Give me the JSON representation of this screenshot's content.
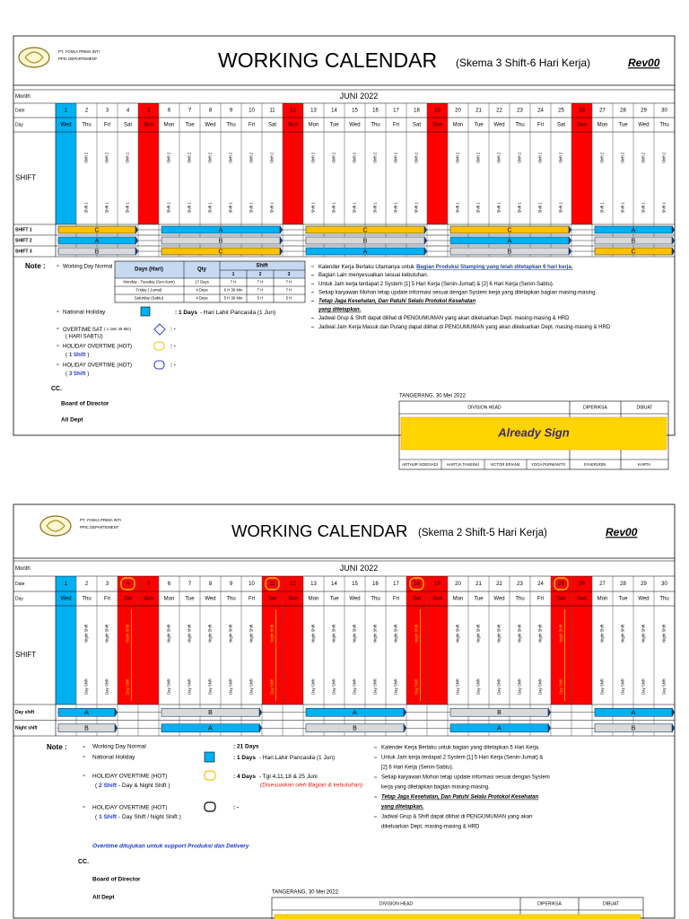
{
  "calendars": [
    {
      "company": [
        "PT. YOSKA PRIMA INTI",
        "PPIC DEPARTEMENT"
      ],
      "title": "WORKING CALENDAR",
      "subtitle": "(Skema 3 Shift-6 Hari Kerja)",
      "revision": "Rev00",
      "row_labels": {
        "month": "Month",
        "date": "Date",
        "day": "Day",
        "shift": "SHIFT"
      },
      "month": "JUNI 2022",
      "dates": [
        1,
        2,
        3,
        4,
        5,
        6,
        7,
        8,
        9,
        10,
        11,
        12,
        13,
        14,
        15,
        16,
        17,
        18,
        19,
        20,
        21,
        22,
        23,
        24,
        25,
        26,
        27,
        28,
        29,
        30
      ],
      "days": [
        "Wed",
        "Thu",
        "Fri",
        "Sat",
        "Sun",
        "Mon",
        "Tue",
        "Wed",
        "Thu",
        "Fri",
        "Sat",
        "Sun",
        "Mon",
        "Tue",
        "Wed",
        "Thu",
        "Fri",
        "Sat",
        "Sun",
        "Mon",
        "Tue",
        "Wed",
        "Thu",
        "Fri",
        "Sat",
        "Sun",
        "Mon",
        "Tue",
        "Wed",
        "Thu"
      ],
      "highlights": [
        {
          "color": "#00b0f0",
          "dates": [
            1
          ]
        },
        {
          "color": "#ff0000",
          "dates": [
            5,
            12,
            19,
            26
          ]
        }
      ],
      "circled_dates": [],
      "circle_color": "#ffc000",
      "shift_labels": [
        "Shift 1",
        "Shift 2"
      ],
      "shift_rows": [
        {
          "name": "SHIFT 1",
          "groups": [
            {
              "label": "C",
              "from": 1,
              "to": 4,
              "color": "#ffc000"
            },
            {
              "label": "A",
              "from": 6,
              "to": 11,
              "color": "#00b0f0"
            },
            {
              "label": "C",
              "from": 13,
              "to": 18,
              "color": "#ffc000"
            },
            {
              "label": "C",
              "from": 20,
              "to": 25,
              "color": "#ffc000"
            },
            {
              "label": "A",
              "from": 27,
              "to": 30,
              "color": "#00b0f0"
            }
          ]
        },
        {
          "name": "SHIFT 2",
          "groups": [
            {
              "label": "A",
              "from": 1,
              "to": 4,
              "color": "#00b0f0"
            },
            {
              "label": "B",
              "from": 6,
              "to": 11,
              "color": "#d9d9d9"
            },
            {
              "label": "B",
              "from": 13,
              "to": 18,
              "color": "#d9d9d9"
            },
            {
              "label": "A",
              "from": 20,
              "to": 25,
              "color": "#00b0f0"
            },
            {
              "label": "B",
              "from": 27,
              "to": 30,
              "color": "#d9d9d9"
            }
          ]
        },
        {
          "name": "SHIFT 3",
          "groups": [
            {
              "label": "B",
              "from": 1,
              "to": 4,
              "color": "#d9d9d9"
            },
            {
              "label": "C",
              "from": 6,
              "to": 11,
              "color": "#ffc000"
            },
            {
              "label": "A",
              "from": 13,
              "to": 18,
              "color": "#00b0f0"
            },
            {
              "label": "B",
              "from": 20,
              "to": 25,
              "color": "#d9d9d9"
            },
            {
              "label": "C",
              "from": 27,
              "to": 30,
              "color": "#ffc000"
            }
          ]
        }
      ],
      "notes": {
        "heading": "Note :",
        "working_day": "Working Day Normal",
        "table": {
          "headers": [
            "Days (Hari)",
            "Qty",
            "Shift"
          ],
          "shift_columns": [
            "1",
            "2",
            "3"
          ],
          "rows": [
            [
              "Monday - Tuesday (Sen-Kam)",
              "17 Days",
              "7 H",
              "7 H",
              "7 H"
            ],
            [
              "Friday ( Jumat)",
              "4 Days",
              "6 H 30 Min",
              "7 H",
              "7 H"
            ],
            [
              "Saturday (Sabtu)",
              "4 Days",
              "5 H 30 Min",
              "5 H",
              "5 H"
            ]
          ]
        },
        "national_holiday": {
          "label": "National Holiday",
          "value": ": 1 Days",
          "detail": "- Hari Lahir Pancasila (1 Jun)"
        },
        "overtime_sat": {
          "label": "OVERTIME SAT",
          "hours": "( 1 Jam 45 Min)",
          "detail": "( HARI SABTU)",
          "value": ": -"
        },
        "hot_one": {
          "label": "HOLIDAY OVERTIME (HOT)",
          "detail": [
            "(",
            "1 Shift",
            ")"
          ],
          "value": ": -"
        },
        "hot_three": {
          "label": "HOLIDAY OVERTIME (HOT)",
          "detail": [
            "(",
            "3 Shift",
            ")"
          ],
          "value": ": -"
        },
        "right": [
          [
            "Kalender Kerja Berlaku Utamanya untuk",
            "Bagian Produksi Stamping yang telah ditetapkan 6 hari kerja."
          ],
          [
            "Bagian Lain menyesuaikan sesuai kebutuhan."
          ],
          [
            "Untuk Jam kerja terdapat 2 System [1] 5 Hari Kerja (Senin-Jumat) & [2] 6 Hari Kerja (Senin-Sabtu)."
          ],
          [
            "Setiap karyawan Mohon tetap update informasi sesuai dengan System kerja yang ditetapkan bagian masing-masing."
          ],
          [
            "Tetap Jaga Kesehatan, Dan Patuhi Selalu Protokol Kesehatan",
            "yang ditetapkan."
          ],
          [
            "Jadwal Grup & Shift dapat dilihat di PENGUMUMAN yang akan dikeluarkan Dept. masing-masing & HRD"
          ],
          [
            "Jadwal Jam Kerja Masuk dan Pulang dapat dilihat di PENGUMUMAN yang akan dikeluarkan Dept. masing-masing & HRD"
          ]
        ]
      },
      "cc": {
        "label": "CC.",
        "recipients": [
          "Board of Director",
          "All Dept"
        ]
      },
      "signature": {
        "place_date": "TANGERANG, 30 Mei 2022",
        "headers": [
          "DIVISION HEAD",
          "DIPERIKSA",
          "DIBUAT"
        ],
        "status": "Already Sign",
        "names": [
          "ARTHUR SOEGIADI",
          "HARTJA TANSINU",
          "VICTOR ERIANS",
          "YOGA PURWANTO",
          "SYAERUDIN",
          "KARTA"
        ]
      }
    },
    {
      "company": [
        "PT. YOSKA PRIMA INTI",
        "PPIC DEPARTEMENT"
      ],
      "title": "WORKING CALENDAR",
      "subtitle": "(Skema 2 Shift-5 Hari Kerja)",
      "revision": "Rev00",
      "row_labels": {
        "month": "Month",
        "date": "Date",
        "day": "Day",
        "shift": "SHIFT"
      },
      "month": "JUNI 2022",
      "dates": [
        1,
        2,
        3,
        4,
        5,
        6,
        7,
        8,
        9,
        10,
        11,
        12,
        13,
        14,
        15,
        16,
        17,
        18,
        19,
        20,
        21,
        22,
        23,
        24,
        25,
        26,
        27,
        28,
        29,
        30
      ],
      "days": [
        "Wed",
        "Thu",
        "Fri",
        "Sat",
        "Sun",
        "Mon",
        "Tue",
        "Wed",
        "Thu",
        "Fri",
        "Sat",
        "Sun",
        "Mon",
        "Tue",
        "Wed",
        "Thu",
        "Fri",
        "Sat",
        "Sun",
        "Mon",
        "Tue",
        "Wed",
        "Thu",
        "Fri",
        "Sat",
        "Sun",
        "Mon",
        "Tue",
        "Wed",
        "Thu"
      ],
      "highlights": [
        {
          "color": "#00b0f0",
          "dates": [
            1
          ]
        },
        {
          "color": "#ff0000",
          "dates": [
            4,
            5,
            11,
            12,
            18,
            19,
            25,
            26
          ]
        }
      ],
      "circled_dates": [
        4,
        11,
        18,
        25
      ],
      "circle_color": "#ffc000",
      "shift_labels": [
        "Day Shift",
        "Night Shift"
      ],
      "shift_rows": [
        {
          "name": "Day shift",
          "groups": [
            {
              "label": "A",
              "from": 1,
              "to": 3,
              "color": "#00b0f0"
            },
            {
              "label": "B",
              "from": 6,
              "to": 10,
              "color": "#d9d9d9"
            },
            {
              "label": "A",
              "from": 13,
              "to": 17,
              "color": "#00b0f0"
            },
            {
              "label": "B",
              "from": 20,
              "to": 24,
              "color": "#d9d9d9"
            },
            {
              "label": "A",
              "from": 27,
              "to": 30,
              "color": "#00b0f0"
            }
          ]
        },
        {
          "name": "Night shift",
          "groups": [
            {
              "label": "B",
              "from": 1,
              "to": 3,
              "color": "#d9d9d9"
            },
            {
              "label": "A",
              "from": 6,
              "to": 10,
              "color": "#00b0f0"
            },
            {
              "label": "B",
              "from": 13,
              "to": 17,
              "color": "#d9d9d9"
            },
            {
              "label": "A",
              "from": 20,
              "to": 24,
              "color": "#00b0f0"
            },
            {
              "label": "B",
              "from": 27,
              "to": 30,
              "color": "#d9d9d9"
            }
          ]
        }
      ],
      "notes": {
        "heading": "Note :",
        "working_day": {
          "label": "Working Day Normal",
          "value": ": 21 Days"
        },
        "national_holiday": {
          "label": "National Holiday",
          "value": ": 1 Days",
          "detail": "- Hari Lahir Pancasila (1 Jun)"
        },
        "hot_two": {
          "label": "HOLIDAY OVERTIME (HOT)",
          "detail": [
            "(",
            "2 Shift",
            "- Day & Night Shift )"
          ],
          "value": ": 4 Days",
          "dates": "- Tgl 4,11,18 & 25 Juni",
          "remark": "(Disesuaikan oleh Bagian & kebutuhan)"
        },
        "hot_one": {
          "label": "HOLIDAY OVERTIME (HOT)",
          "detail": [
            "(",
            "1 Shift",
            "- Day Shift / Night Shift )"
          ],
          "value": ": -"
        },
        "support": "Overtime ditujukan untuk support Produksi dan Delivery",
        "right": [
          [
            "Kalender Kerja Berlaku untuk bagian yang ditetapkan 5 Hari Kerja."
          ],
          [
            "Untuk Jam kerja terdapat 2 System [1] 5 Hari Kerja (Senin-Jumat) &",
            "[2] 6 Hari Kerja (Senin-Sabtu)."
          ],
          [
            "Setiap karyawan Mohon tetap update informasi sesuai dengan System",
            "kerja yang ditetapkan bagian masing-masing."
          ],
          [
            "Tetap Jaga Kesehatan, Dan Patuhi Selalu Protokol Kesehatan",
            "yang ditetapkan."
          ],
          [
            "Jadwal Grup & Shift dapat dilihat di PENGUMUMAN yang akan",
            "dikeluarkan Dept. masing-masing & HRD"
          ]
        ]
      },
      "cc": {
        "label": "CC.",
        "recipients": [
          "Board of Director",
          "All Dept"
        ]
      },
      "signature": {
        "place_date": "TANGERANG, 30 Mei 2022",
        "headers": [
          "DIVISION HEAD",
          "DIPERIKSA",
          "DIBUAT"
        ]
      }
    }
  ]
}
